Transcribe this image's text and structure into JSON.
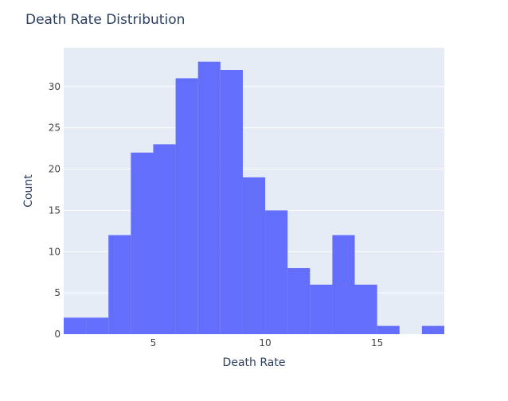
{
  "chart_data": {
    "type": "bar",
    "title": "Death Rate Distribution",
    "xlabel": "Death Rate",
    "ylabel": "Count",
    "xlim": [
      1,
      18
    ],
    "ylim": [
      0,
      34.7
    ],
    "x_ticks": [
      5,
      10,
      15
    ],
    "y_ticks": [
      0,
      5,
      10,
      15,
      20,
      25,
      30
    ],
    "grid": true,
    "bin_width": 1,
    "bins": [
      {
        "x0": 1,
        "x1": 2,
        "count": 2
      },
      {
        "x0": 2,
        "x1": 3,
        "count": 2
      },
      {
        "x0": 3,
        "x1": 4,
        "count": 12
      },
      {
        "x0": 4,
        "x1": 5,
        "count": 22
      },
      {
        "x0": 5,
        "x1": 6,
        "count": 23
      },
      {
        "x0": 6,
        "x1": 7,
        "count": 31
      },
      {
        "x0": 7,
        "x1": 8,
        "count": 33
      },
      {
        "x0": 8,
        "x1": 9,
        "count": 32
      },
      {
        "x0": 9,
        "x1": 10,
        "count": 19
      },
      {
        "x0": 10,
        "x1": 11,
        "count": 15
      },
      {
        "x0": 11,
        "x1": 12,
        "count": 8
      },
      {
        "x0": 12,
        "x1": 13,
        "count": 6
      },
      {
        "x0": 13,
        "x1": 14,
        "count": 12
      },
      {
        "x0": 14,
        "x1": 15,
        "count": 6
      },
      {
        "x0": 15,
        "x1": 16,
        "count": 1
      },
      {
        "x0": 16,
        "x1": 17,
        "count": 0
      },
      {
        "x0": 17,
        "x1": 18,
        "count": 1
      }
    ],
    "colors": {
      "bar": "#636efa",
      "plot_bg": "#e5ecf6",
      "grid": "#ffffff",
      "text": "#2a3f5f",
      "tick_text": "#444444"
    }
  }
}
